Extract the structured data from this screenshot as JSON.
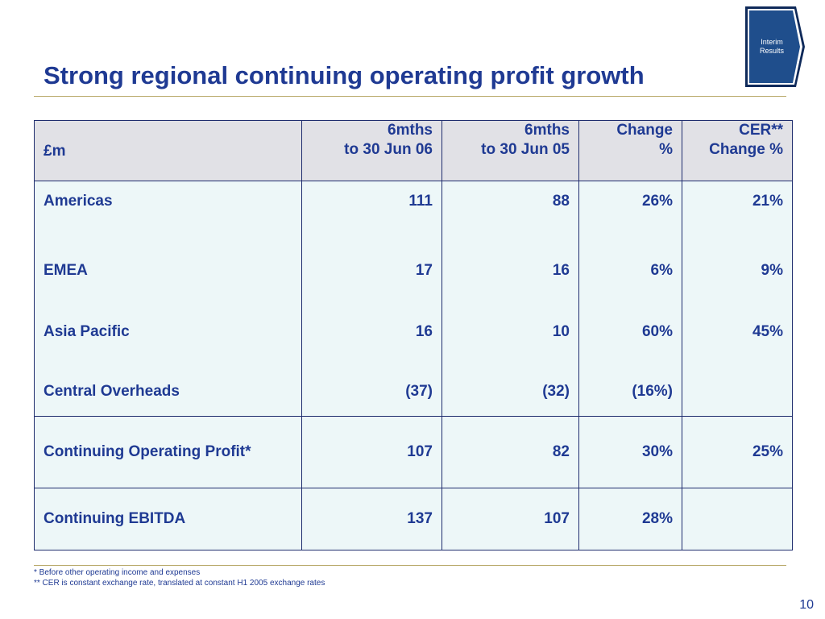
{
  "slide": {
    "title": "Strong regional continuing operating profit growth",
    "badge": {
      "line1": "Interim",
      "line2": "Results"
    },
    "page_number": "10"
  },
  "table": {
    "headers": {
      "label": "£m",
      "col1_line1": "6mths",
      "col1_line2": "to 30 Jun 06",
      "col2_line1": "6mths",
      "col2_line2": "to 30 Jun 05",
      "col3_line1": "Change",
      "col3_line2": "%",
      "col4_line1": "CER**",
      "col4_line2": "Change %"
    },
    "rows": [
      {
        "label": "Americas",
        "jun06": "111",
        "jun05": "88",
        "change": "26%",
        "cer": "21%"
      },
      {
        "label": "EMEA",
        "jun06": "17",
        "jun05": "16",
        "change": "6%",
        "cer": "9%"
      },
      {
        "label": "Asia Pacific",
        "jun06": "16",
        "jun05": "10",
        "change": "60%",
        "cer": "45%"
      },
      {
        "label": "Central Overheads",
        "jun06": "(37)",
        "jun05": "(32)",
        "change": "(16%)",
        "cer": ""
      },
      {
        "label": "Continuing Operating Profit*",
        "jun06": "107",
        "jun05": "82",
        "change": "30%",
        "cer": "25%"
      },
      {
        "label": "Continuing EBITDA",
        "jun06": "137",
        "jun05": "107",
        "change": "28%",
        "cer": ""
      }
    ]
  },
  "footnotes": {
    "note1": "* Before other operating income and expenses",
    "note2": "**  CER is constant exchange rate, translated at constant H1 2005 exchange rates"
  },
  "colors": {
    "title": "#1f3a93",
    "header_bg": "#e1e1e6",
    "body_bg": "#edf7f8",
    "rule": "#b9a96a",
    "badge": "#1f4e8c"
  }
}
